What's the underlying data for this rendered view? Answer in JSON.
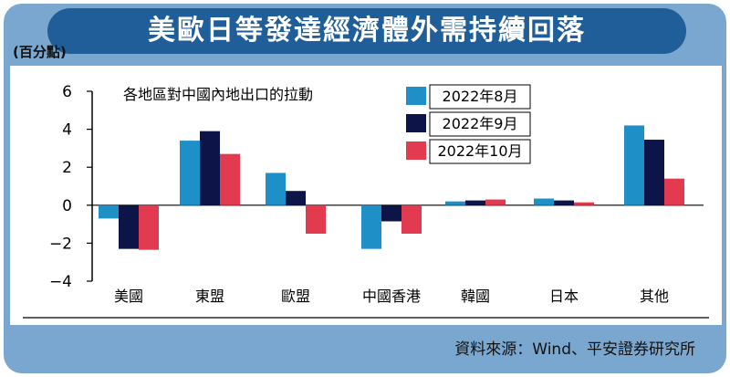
{
  "headline": "美歐日等發達經濟體外需持續回落",
  "unit_label": "(百分點)",
  "source": "資料來源：Wind、平安證券研究所",
  "chart_data": {
    "type": "bar",
    "title": "各地區對中國內地出口的拉動",
    "categories": [
      "美國",
      "東盟",
      "歐盟",
      "中國香港",
      "韓國",
      "日本",
      "其他"
    ],
    "series": [
      {
        "name": "2022年8月",
        "color": "#1f8fc8",
        "values": [
          -0.7,
          3.4,
          1.7,
          -2.3,
          0.2,
          0.35,
          4.2
        ]
      },
      {
        "name": "2022年9月",
        "color": "#0c1448",
        "values": [
          -2.3,
          3.9,
          0.75,
          -0.85,
          0.25,
          0.25,
          3.45
        ]
      },
      {
        "name": "2022年10月",
        "color": "#e23a4f",
        "values": [
          -2.35,
          2.7,
          -1.5,
          -1.5,
          0.3,
          0.15,
          1.4
        ]
      }
    ],
    "ylim": [
      -4,
      6
    ],
    "yticks": [
      "6",
      "4",
      "2",
      "0",
      "−2",
      "−4"
    ],
    "legend_position": "top-center",
    "grid": false
  }
}
